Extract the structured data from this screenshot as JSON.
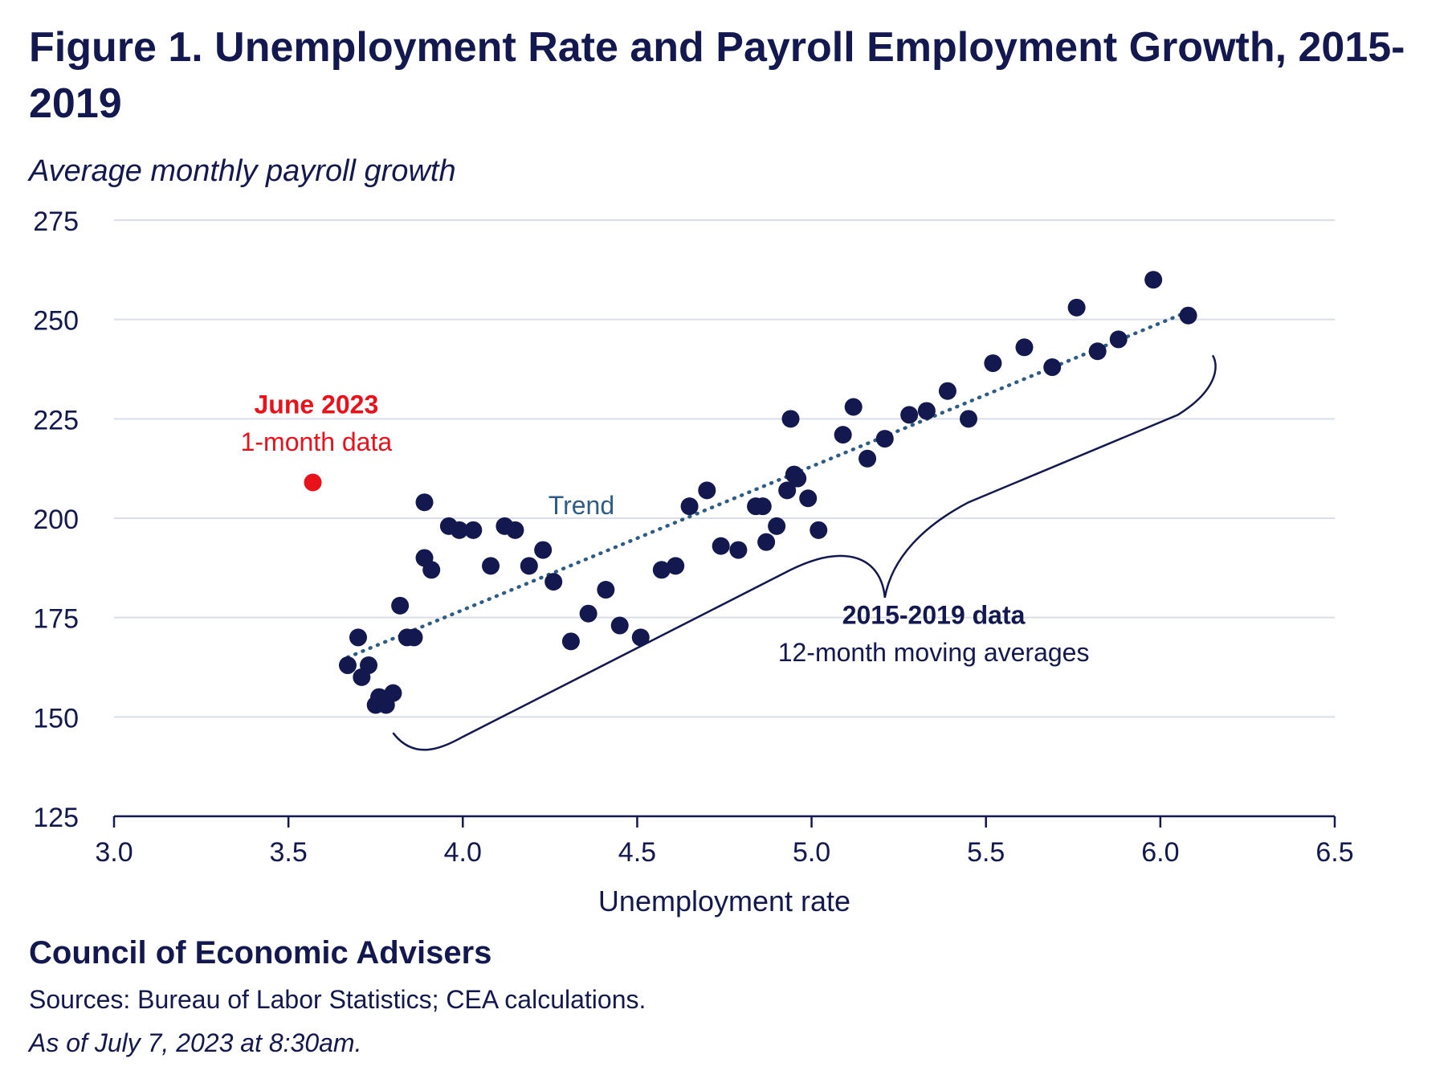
{
  "header": {
    "title": "Figure 1. Unemployment Rate and Payroll Employment Growth, 2015-2019",
    "subtitle": "Average monthly payroll growth"
  },
  "footer": {
    "organization": "Council of Economic Advisers",
    "sources": "Sources: Bureau of Labor Statistics; CEA calculations.",
    "as_of": "As of July 7, 2023 at 8:30am."
  },
  "colors": {
    "navy": "#13184f",
    "trend": "#2f5c85",
    "highlight": "#e8121b",
    "grid": "#d9dee8"
  },
  "chart_data": {
    "type": "scatter",
    "xlabel": "Unemployment rate",
    "ylabel": "",
    "xlim": [
      3.0,
      6.5
    ],
    "ylim": [
      125,
      275
    ],
    "x_ticks": [
      "3.0",
      "3.5",
      "4.0",
      "4.5",
      "5.0",
      "5.5",
      "6.0",
      "6.5"
    ],
    "y_ticks": [
      "125",
      "150",
      "175",
      "200",
      "225",
      "250",
      "275"
    ],
    "grid": "horizontal",
    "series": [
      {
        "points": [
          [
            3.67,
            163
          ],
          [
            3.7,
            170
          ],
          [
            3.71,
            160
          ],
          [
            3.73,
            163
          ],
          [
            3.75,
            153
          ],
          [
            3.76,
            155
          ],
          [
            3.78,
            153
          ],
          [
            3.8,
            156
          ],
          [
            3.82,
            178
          ],
          [
            3.84,
            170
          ],
          [
            3.86,
            170
          ],
          [
            3.89,
            204
          ],
          [
            3.89,
            190
          ],
          [
            3.91,
            187
          ],
          [
            3.96,
            198
          ],
          [
            3.99,
            197
          ],
          [
            4.03,
            197
          ],
          [
            4.08,
            188
          ],
          [
            4.12,
            198
          ],
          [
            4.15,
            197
          ],
          [
            4.19,
            188
          ],
          [
            4.23,
            192
          ],
          [
            4.26,
            184
          ],
          [
            4.31,
            169
          ],
          [
            4.36,
            176
          ],
          [
            4.41,
            182
          ],
          [
            4.45,
            173
          ],
          [
            4.51,
            170
          ],
          [
            4.57,
            187
          ],
          [
            4.61,
            188
          ],
          [
            4.65,
            203
          ],
          [
            4.7,
            207
          ],
          [
            4.74,
            193
          ],
          [
            4.79,
            192
          ],
          [
            4.84,
            203
          ],
          [
            4.86,
            203
          ],
          [
            4.87,
            194
          ],
          [
            4.9,
            198
          ],
          [
            4.93,
            207
          ],
          [
            4.94,
            225
          ],
          [
            4.95,
            211
          ],
          [
            4.96,
            210
          ],
          [
            4.99,
            205
          ],
          [
            5.02,
            197
          ],
          [
            5.09,
            221
          ],
          [
            5.12,
            228
          ],
          [
            5.16,
            215
          ],
          [
            5.21,
            220
          ],
          [
            5.28,
            226
          ],
          [
            5.33,
            227
          ],
          [
            5.39,
            232
          ],
          [
            5.45,
            225
          ],
          [
            5.52,
            239
          ],
          [
            5.61,
            243
          ],
          [
            5.69,
            238
          ],
          [
            5.76,
            253
          ],
          [
            5.82,
            242
          ],
          [
            5.88,
            245
          ],
          [
            5.98,
            260
          ],
          [
            6.08,
            251
          ]
        ]
      },
      {
        "points": [
          [
            3.57,
            209
          ]
        ]
      }
    ],
    "trend": {
      "label": "Trend",
      "start": [
        3.67,
        165
      ],
      "end": [
        6.08,
        252
      ]
    },
    "annotations": {
      "highlight_title": "June 2023",
      "highlight_sub": "1-month data",
      "brace_title": "2015-2019 data",
      "brace_sub": "12-month moving averages"
    }
  }
}
